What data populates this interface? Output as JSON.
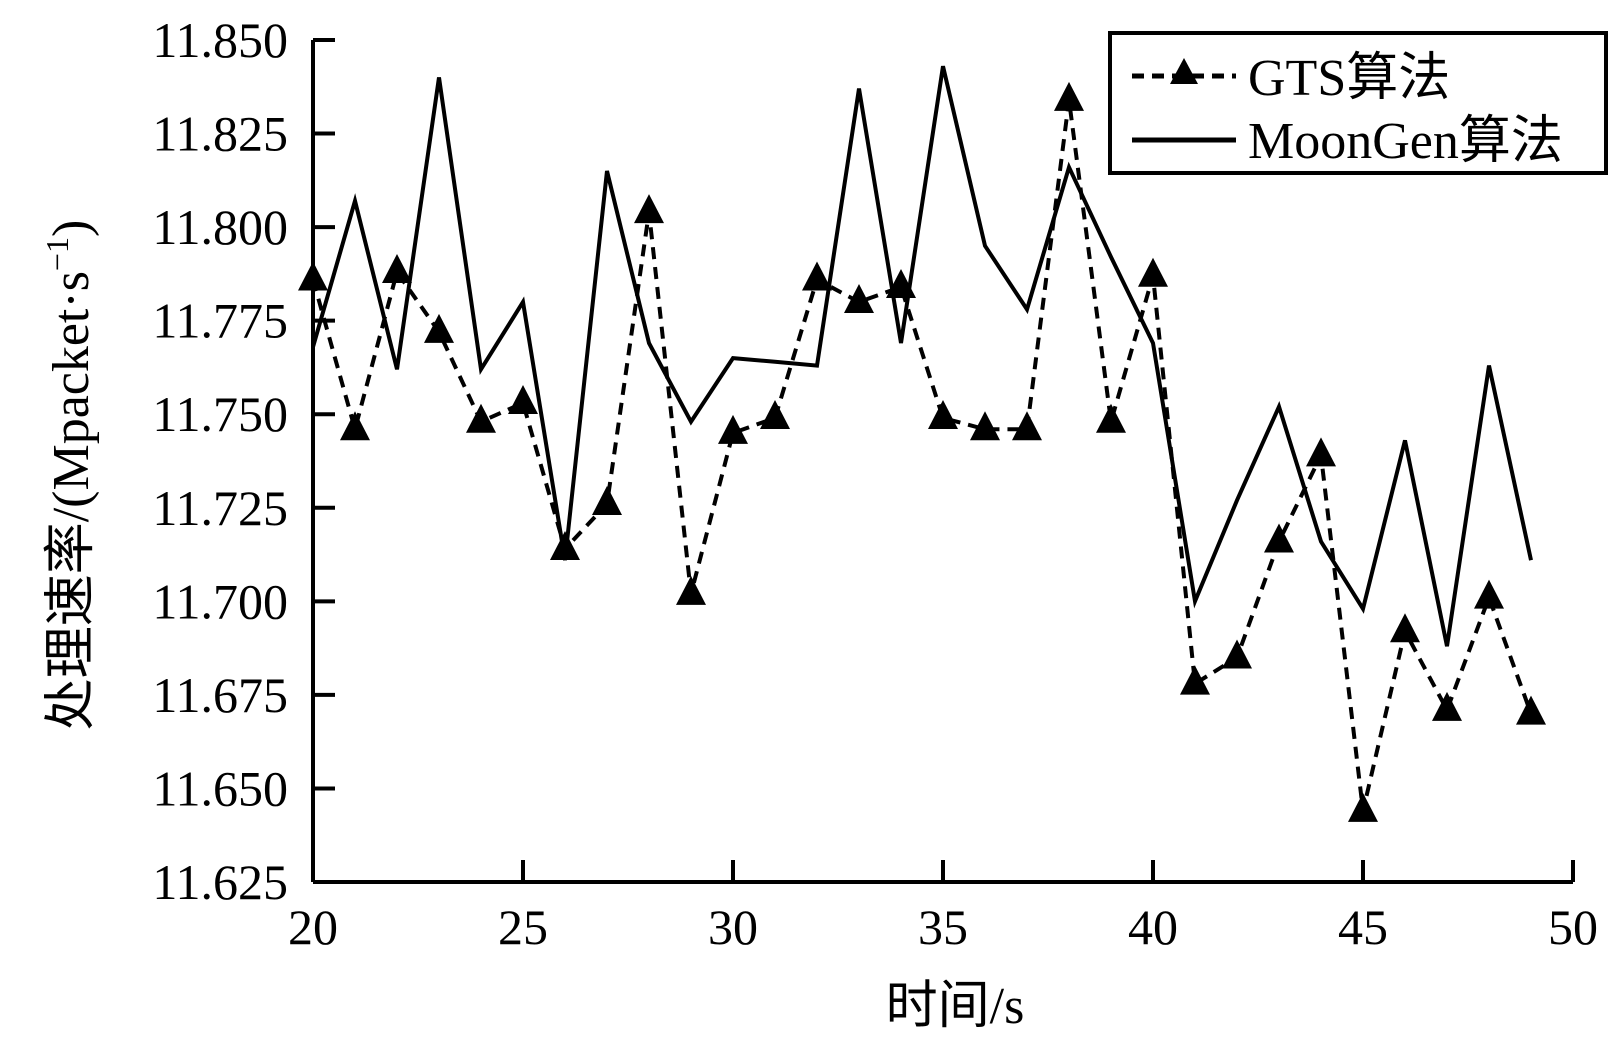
{
  "chart_data": {
    "type": "line",
    "title": "",
    "xlabel": "时间/s",
    "ylabel": "处理速率/(Mpacket·s",
    "ylabel_superscript": "−1",
    "ylabel_close": ")",
    "xlim": [
      20,
      50
    ],
    "ylim": [
      11.625,
      11.85
    ],
    "xticks": [
      20,
      25,
      30,
      35,
      40,
      45,
      50
    ],
    "yticks": [
      11.625,
      11.65,
      11.675,
      11.7,
      11.725,
      11.75,
      11.775,
      11.8,
      11.825,
      11.85
    ],
    "ytick_labels": [
      "11.625",
      "11.650",
      "11.675",
      "11.700",
      "11.725",
      "11.750",
      "11.775",
      "11.800",
      "11.825",
      "11.850"
    ],
    "grid": false,
    "legend_position": "top-right",
    "series": [
      {
        "name": "GTS算法",
        "style": "dashed",
        "marker": "triangle",
        "color": "#000000",
        "x": [
          20,
          21,
          22,
          23,
          24,
          25,
          26,
          27,
          28,
          29,
          30,
          31,
          32,
          33,
          34,
          35,
          36,
          37,
          38,
          39,
          40,
          41,
          42,
          43,
          44,
          45,
          46,
          47,
          48,
          49
        ],
        "values": [
          11.786,
          11.746,
          11.788,
          11.772,
          11.748,
          11.753,
          11.714,
          11.726,
          11.804,
          11.702,
          11.745,
          11.749,
          11.786,
          11.78,
          11.784,
          11.749,
          11.746,
          11.746,
          11.834,
          11.748,
          11.787,
          11.678,
          11.685,
          11.716,
          11.739,
          11.644,
          11.692,
          11.671,
          11.701,
          11.67
        ]
      },
      {
        "name": "MoonGen算法",
        "style": "solid",
        "marker": "none",
        "color": "#000000",
        "x": [
          20,
          21,
          22,
          23,
          24,
          25,
          26,
          27,
          28,
          29,
          30,
          31,
          32,
          33,
          34,
          35,
          36,
          37,
          38,
          39,
          40,
          41,
          42,
          43,
          44,
          45,
          46,
          47,
          48,
          49
        ],
        "values": [
          11.768,
          11.807,
          11.762,
          11.84,
          11.762,
          11.78,
          11.711,
          11.815,
          11.769,
          11.748,
          11.765,
          11.764,
          11.763,
          11.837,
          11.769,
          11.843,
          11.795,
          11.778,
          11.816,
          11.792,
          11.769,
          11.7,
          11.727,
          11.752,
          11.716,
          11.698,
          11.743,
          11.688,
          11.763,
          11.711
        ]
      }
    ]
  }
}
